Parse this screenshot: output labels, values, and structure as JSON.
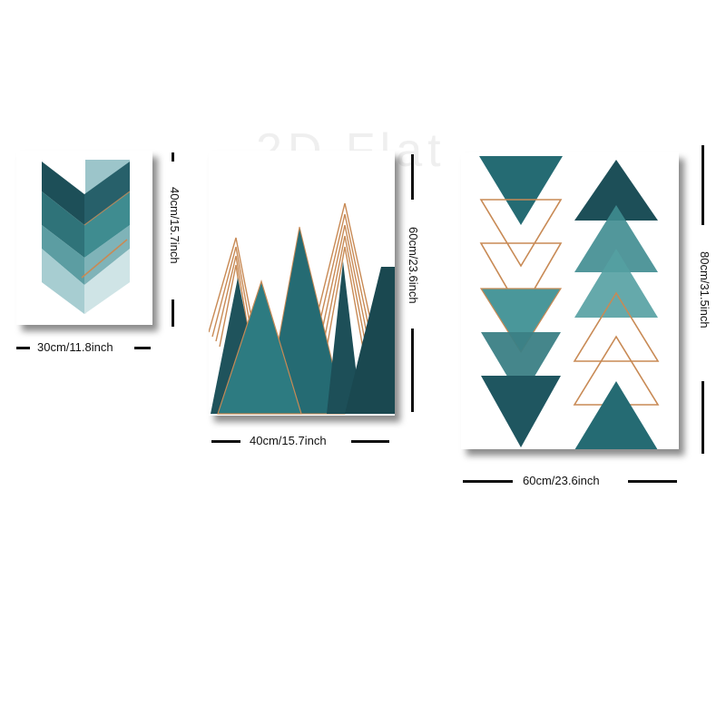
{
  "watermark": "2D Flat",
  "posters": [
    {
      "name": "chevron-poster",
      "width_label": "30cm/11.8inch",
      "height_label": "40cm/15.7inch"
    },
    {
      "name": "mountain-poster",
      "width_label": "40cm/15.7inch",
      "height_label": "60cm/23.6inch"
    },
    {
      "name": "triangles-poster",
      "width_label": "60cm/23.6inch",
      "height_label": "80cm/31.5inch"
    }
  ],
  "colors": {
    "teal_dark": "#1d4f58",
    "teal": "#256b73",
    "teal_mid": "#3f8c90",
    "teal_light": "#8ab8bd",
    "teal_pale": "#c6dfe1",
    "copper": "#c88a55",
    "background": "#ffffff"
  }
}
